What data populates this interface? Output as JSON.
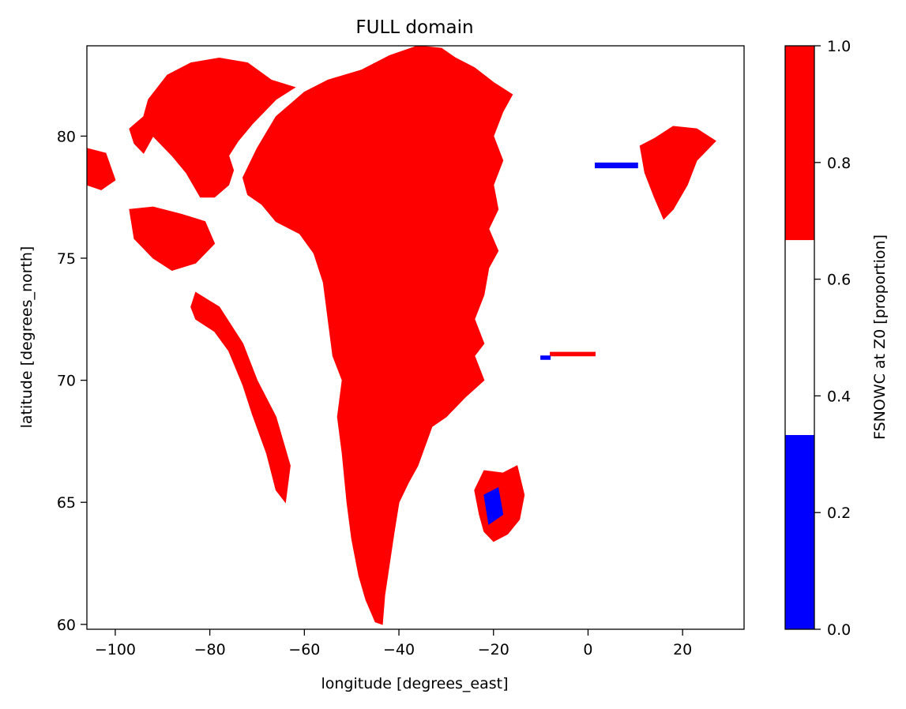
{
  "chart_data": {
    "type": "heatmap",
    "title": "FULL domain",
    "xlabel": "longitude [degrees_east]",
    "ylabel": "latitude [degrees_north]",
    "xlim": [
      -106,
      33
    ],
    "ylim": [
      59.8,
      83.7
    ],
    "x_ticks": [
      -100,
      -80,
      -60,
      -40,
      -20,
      0,
      20
    ],
    "x_tick_labels": [
      "−100",
      "−80",
      "−60",
      "−40",
      "−20",
      "0",
      "20"
    ],
    "y_ticks": [
      60,
      65,
      70,
      75,
      80
    ],
    "y_tick_labels": [
      "60",
      "65",
      "70",
      "75",
      "80"
    ],
    "grid": false,
    "colorbar": {
      "label": "FSNOWC at Z0 [proportion]",
      "range": [
        0,
        1
      ],
      "ticks": [
        0.0,
        0.2,
        0.4,
        0.6,
        0.8,
        1.0
      ],
      "tick_labels": [
        "0.0",
        "0.2",
        "0.4",
        "0.6",
        "0.8",
        "1.0"
      ],
      "bins": [
        {
          "from": 0.0,
          "to": 0.333,
          "color": "#0000ff"
        },
        {
          "from": 0.333,
          "to": 0.667,
          "color": "#ffffff"
        },
        {
          "from": 0.667,
          "to": 1.0,
          "color": "#ff0000"
        }
      ]
    },
    "regions": [
      {
        "name": "greenland",
        "value": 1.0,
        "outline": [
          [
            -73,
            78.3
          ],
          [
            -70,
            79.5
          ],
          [
            -66,
            80.8
          ],
          [
            -60,
            81.8
          ],
          [
            -55,
            82.3
          ],
          [
            -48,
            82.7
          ],
          [
            -42,
            83.3
          ],
          [
            -36,
            83.7
          ],
          [
            -31,
            83.6
          ],
          [
            -28,
            83.2
          ],
          [
            -24,
            82.8
          ],
          [
            -20,
            82.2
          ],
          [
            -16,
            81.7
          ],
          [
            -18,
            81.0
          ],
          [
            -20,
            80.0
          ],
          [
            -18,
            79.0
          ],
          [
            -20,
            78.0
          ],
          [
            -19,
            77.0
          ],
          [
            -21,
            76.2
          ],
          [
            -19,
            75.3
          ],
          [
            -21,
            74.6
          ],
          [
            -22,
            73.5
          ],
          [
            -24,
            72.5
          ],
          [
            -22,
            71.5
          ],
          [
            -24,
            71.0
          ],
          [
            -22,
            70.0
          ],
          [
            -26,
            69.3
          ],
          [
            -30,
            68.5
          ],
          [
            -33,
            68.1
          ],
          [
            -36,
            66.5
          ],
          [
            -38,
            65.8
          ],
          [
            -40,
            65.0
          ],
          [
            -41,
            63.8
          ],
          [
            -42,
            62.5
          ],
          [
            -43,
            61.2
          ],
          [
            -43.5,
            60.0
          ],
          [
            -45,
            60.1
          ],
          [
            -47,
            61.0
          ],
          [
            -48.5,
            62.0
          ],
          [
            -50,
            63.5
          ],
          [
            -51,
            65.0
          ],
          [
            -52,
            67.0
          ],
          [
            -53,
            68.5
          ],
          [
            -52,
            70.0
          ],
          [
            -54,
            71.0
          ],
          [
            -55,
            72.5
          ],
          [
            -56,
            74.0
          ],
          [
            -58,
            75.2
          ],
          [
            -61,
            76.0
          ],
          [
            -66,
            76.5
          ],
          [
            -69,
            77.2
          ],
          [
            -72,
            77.6
          ]
        ]
      },
      {
        "name": "ellesmere",
        "value": 1.0,
        "outline": [
          [
            -93,
            81.5
          ],
          [
            -89,
            82.5
          ],
          [
            -84,
            83.0
          ],
          [
            -78,
            83.2
          ],
          [
            -72,
            83.0
          ],
          [
            -67,
            82.3
          ],
          [
            -62,
            82.0
          ],
          [
            -66,
            81.5
          ],
          [
            -71,
            80.5
          ],
          [
            -74,
            79.8
          ],
          [
            -76,
            79.2
          ],
          [
            -75,
            78.6
          ],
          [
            -76,
            78.0
          ],
          [
            -79,
            77.5
          ],
          [
            -82,
            77.5
          ],
          [
            -85,
            78.5
          ],
          [
            -88,
            79.2
          ],
          [
            -92,
            80.0
          ],
          [
            -94,
            80.8
          ]
        ]
      },
      {
        "name": "axel-heiberg",
        "value": 1.0,
        "outline": [
          [
            -97,
            80.3
          ],
          [
            -94,
            80.8
          ],
          [
            -92,
            80.0
          ],
          [
            -94,
            79.3
          ],
          [
            -96,
            79.7
          ]
        ]
      },
      {
        "name": "west-islands",
        "value": 1.0,
        "outline": [
          [
            -106,
            79.5
          ],
          [
            -102,
            79.3
          ],
          [
            -100,
            78.2
          ],
          [
            -103,
            77.8
          ],
          [
            -106,
            78.0
          ]
        ]
      },
      {
        "name": "devon",
        "value": 1.0,
        "outline": [
          [
            -97,
            77.0
          ],
          [
            -92,
            77.1
          ],
          [
            -86,
            76.8
          ],
          [
            -81,
            76.5
          ],
          [
            -79,
            75.6
          ],
          [
            -83,
            74.8
          ],
          [
            -88,
            74.5
          ],
          [
            -92,
            75.0
          ],
          [
            -96,
            75.8
          ]
        ]
      },
      {
        "name": "baffin",
        "value": 1.0,
        "outline": [
          [
            -83,
            73.6
          ],
          [
            -78,
            73.0
          ],
          [
            -73,
            71.5
          ],
          [
            -70,
            70.0
          ],
          [
            -66,
            68.5
          ],
          [
            -63,
            66.5
          ],
          [
            -64,
            65.0
          ],
          [
            -66,
            65.5
          ],
          [
            -68,
            67.0
          ],
          [
            -71,
            68.6
          ],
          [
            -73,
            69.8
          ],
          [
            -76,
            71.2
          ],
          [
            -79,
            72.0
          ],
          [
            -83,
            72.5
          ],
          [
            -84,
            73.0
          ]
        ]
      },
      {
        "name": "svalbard",
        "value": 1.0,
        "outline": [
          [
            11,
            79.6
          ],
          [
            14,
            79.9
          ],
          [
            18,
            80.4
          ],
          [
            23,
            80.3
          ],
          [
            27,
            79.8
          ],
          [
            23,
            79.0
          ],
          [
            21,
            78.0
          ],
          [
            18,
            77.0
          ],
          [
            16,
            76.6
          ],
          [
            14,
            77.5
          ],
          [
            12,
            78.5
          ]
        ]
      },
      {
        "name": "iceland",
        "value": 1.0,
        "outline": [
          [
            -24,
            65.5
          ],
          [
            -22,
            66.3
          ],
          [
            -18,
            66.2
          ],
          [
            -15,
            66.5
          ],
          [
            -13.5,
            65.3
          ],
          [
            -14.5,
            64.3
          ],
          [
            -17,
            63.7
          ],
          [
            -20,
            63.4
          ],
          [
            -22,
            63.8
          ],
          [
            -23,
            64.5
          ]
        ]
      },
      {
        "name": "jan-mayen-line",
        "value": 1.0,
        "outline": [
          [
            -8,
            71.15
          ],
          [
            1.5,
            71.15
          ],
          [
            1.5,
            71.0
          ],
          [
            -8,
            71.0
          ]
        ]
      }
    ],
    "low_value_areas": [
      {
        "name": "east-ice-strip",
        "value": 0.0,
        "outline": [
          [
            1.5,
            78.9
          ],
          [
            10.5,
            78.9
          ],
          [
            10.5,
            78.7
          ],
          [
            1.5,
            78.7
          ]
        ]
      },
      {
        "name": "iceland-low",
        "value": 0.0,
        "outline": [
          [
            -22,
            65.3
          ],
          [
            -19,
            65.6
          ],
          [
            -18,
            64.5
          ],
          [
            -21,
            64.1
          ]
        ]
      },
      {
        "name": "jan-mayen-low",
        "value": 0.0,
        "outline": [
          [
            -10,
            71.0
          ],
          [
            -8,
            71.0
          ],
          [
            -8,
            70.85
          ],
          [
            -10,
            70.85
          ]
        ]
      }
    ]
  }
}
